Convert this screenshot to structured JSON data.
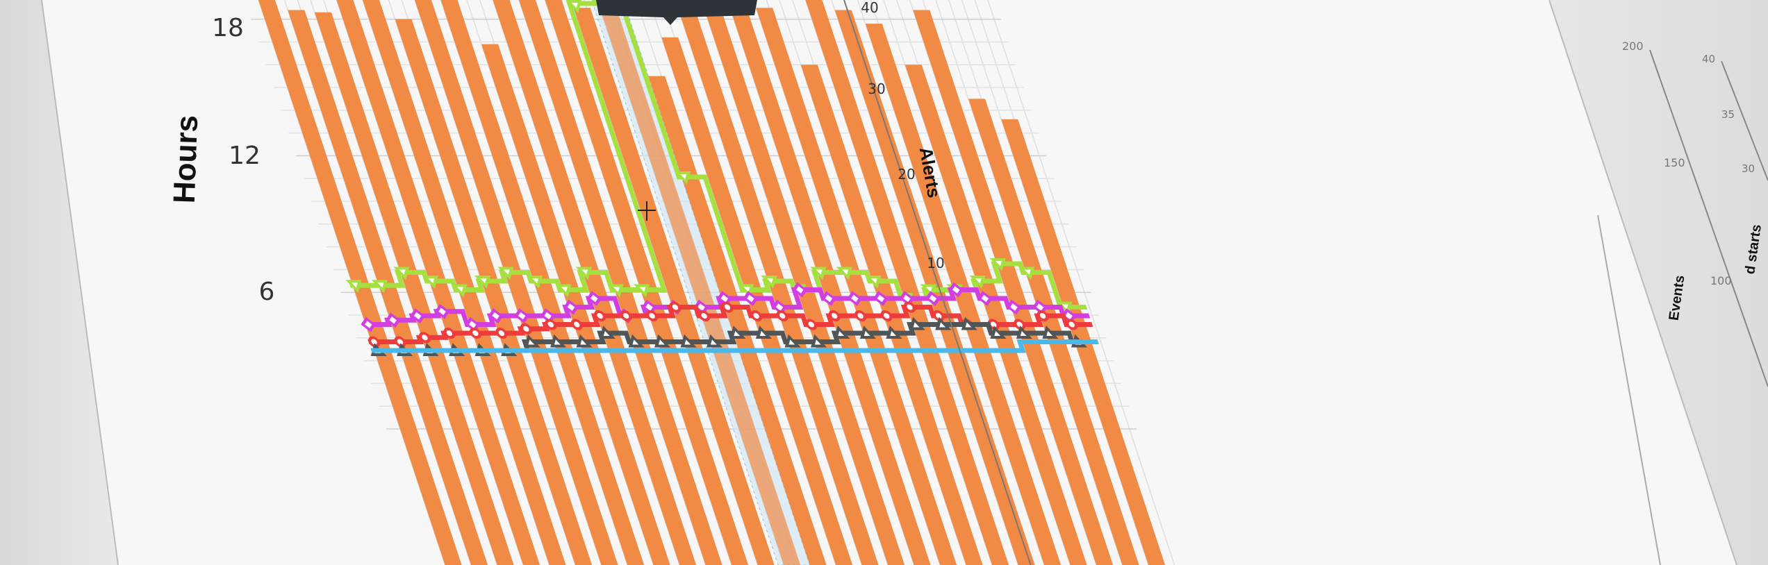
{
  "chart_data": {
    "type": "bar",
    "ylabel": "Hours",
    "y2label": "Alerts",
    "ylim": [
      0,
      19
    ],
    "y2lim": [
      0,
      40
    ],
    "yticks": [
      "18",
      "12",
      "6"
    ],
    "y2ticks": [
      "40",
      "30",
      "20",
      "10"
    ],
    "grid": true,
    "highlighted_index": 13,
    "bar_color": "#f08a45",
    "bars": [
      19.5,
      18.4,
      18.3,
      19.2,
      19.6,
      18.0,
      19.6,
      19.3,
      16.9,
      19.6,
      19.4,
      19.5,
      18.5,
      18.7,
      15.5,
      17.2,
      19.3,
      18.2,
      19.2,
      18.5,
      16.0,
      19.0,
      18.4,
      17.8,
      16.0,
      18.4,
      14.5,
      13.6
    ],
    "series": [
      {
        "color": "#a6e040",
        "marker": "triangle",
        "values": [
          7.5,
          7.5,
          9,
          8,
          7,
          8,
          9,
          8,
          7,
          9,
          7,
          7,
          40,
          40,
          20,
          7,
          8,
          7,
          9,
          9,
          8,
          6,
          7,
          7,
          8,
          10,
          9,
          5
        ]
      },
      {
        "color": "#d23ee0",
        "marker": "diamond",
        "values": [
          3,
          3.5,
          4,
          4.5,
          3,
          4,
          4,
          4,
          5,
          6,
          4,
          5,
          5,
          5,
          6,
          6,
          5,
          7,
          6,
          6,
          6,
          6,
          6,
          7,
          6,
          5,
          5,
          4
        ]
      },
      {
        "color": "#ee3b3b",
        "marker": "circle",
        "values": [
          1,
          1,
          1.5,
          2,
          2,
          2,
          2.5,
          3,
          3,
          4,
          4,
          4,
          5,
          4,
          5,
          4,
          4,
          3,
          4,
          4,
          4,
          5,
          4,
          3,
          3,
          3,
          4,
          3
        ]
      },
      {
        "color": "#505558",
        "marker": "triangle-up",
        "values": [
          0,
          0,
          0,
          0,
          0,
          0,
          1,
          1,
          1,
          2,
          1,
          1,
          1,
          1,
          2,
          2,
          1,
          1,
          2,
          2,
          2,
          3,
          3,
          3,
          2,
          2,
          2,
          1
        ]
      },
      {
        "color": "#4ab8e8",
        "marker": "none",
        "values": [
          0,
          0,
          0,
          0,
          0,
          0,
          0,
          0,
          0,
          0,
          0,
          0,
          0,
          0,
          0,
          0,
          0,
          0,
          0,
          0,
          0,
          0,
          0,
          0,
          0,
          1,
          1,
          1
        ]
      }
    ]
  },
  "side_chart": {
    "ylabel": "Events",
    "yticks": [
      "200",
      "150",
      "100"
    ],
    "y2label": "d starts",
    "y2ticks": [
      "40",
      "35",
      "30"
    ]
  }
}
